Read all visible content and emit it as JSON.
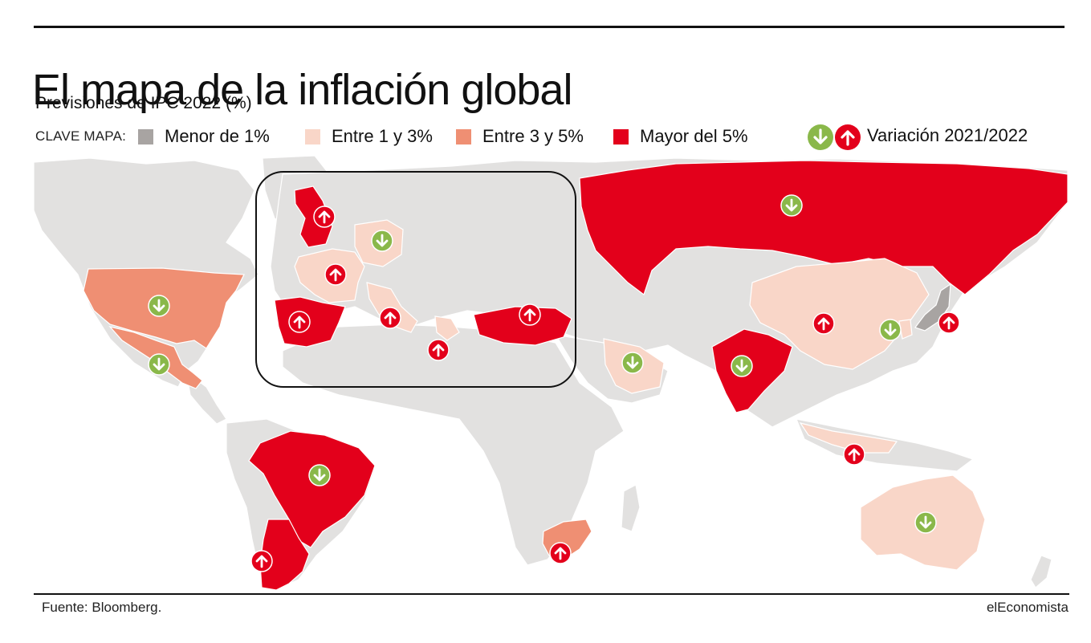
{
  "header": {
    "title": "El mapa de la inflación global",
    "subtitle": "Previsiones de IPC 2022 (%)"
  },
  "legend": {
    "title": "CLAVE MAPA:",
    "items": [
      {
        "label": "Menor de 1%",
        "color": "#a8a4a2"
      },
      {
        "label": "Entre 1 y 3%",
        "color": "#f9d6c8"
      },
      {
        "label": "Entre 3 y 5%",
        "color": "#ef8f73"
      },
      {
        "label": "Mayor del 5%",
        "color": "#e3001b"
      }
    ],
    "variation_label": "Variación 2021/2022",
    "down_icon": "arrow-down-circle-icon",
    "up_icon": "arrow-up-circle-icon",
    "down_color": "#8ab84a",
    "up_color": "#e3001b"
  },
  "map": {
    "land_color": "#e2e1e0",
    "countries": [
      {
        "name": "Estados Unidos",
        "category": "Entre 3 y 5%",
        "variation": "down"
      },
      {
        "name": "México",
        "category": "Entre 3 y 5%",
        "variation": "down"
      },
      {
        "name": "Brasil",
        "category": "Mayor del 5%",
        "variation": "down"
      },
      {
        "name": "Argentina",
        "category": "Mayor del 5%",
        "variation": "up"
      },
      {
        "name": "Reino Unido",
        "category": "Mayor del 5%",
        "variation": "up"
      },
      {
        "name": "Alemania",
        "category": "Entre 1 y 3%",
        "variation": "down"
      },
      {
        "name": "Francia",
        "category": "Entre 1 y 3%",
        "variation": "up"
      },
      {
        "name": "España",
        "category": "Mayor del 5%",
        "variation": "up"
      },
      {
        "name": "Italia",
        "category": "Entre 1 y 3%",
        "variation": "up"
      },
      {
        "name": "Grecia",
        "category": "Entre 1 y 3%",
        "variation": "up"
      },
      {
        "name": "Turquía",
        "category": "Mayor del 5%",
        "variation": "up"
      },
      {
        "name": "Rusia",
        "category": "Mayor del 5%",
        "variation": "down"
      },
      {
        "name": "Arabia Saudí",
        "category": "Entre 1 y 3%",
        "variation": "down"
      },
      {
        "name": "India",
        "category": "Mayor del 5%",
        "variation": "down"
      },
      {
        "name": "China",
        "category": "Entre 1 y 3%",
        "variation": "up"
      },
      {
        "name": "Corea del Sur",
        "category": "Entre 1 y 3%",
        "variation": "down"
      },
      {
        "name": "Japón",
        "category": "Menor de 1%",
        "variation": "up"
      },
      {
        "name": "Indonesia",
        "category": "Entre 1 y 3%",
        "variation": "up"
      },
      {
        "name": "Australia",
        "category": "Entre 1 y 3%",
        "variation": "down"
      },
      {
        "name": "Sudáfrica",
        "category": "Entre 3 y 5%",
        "variation": "up"
      }
    ]
  },
  "footer": {
    "source": "Fuente: Bloomberg.",
    "brand": "elEconomista"
  }
}
